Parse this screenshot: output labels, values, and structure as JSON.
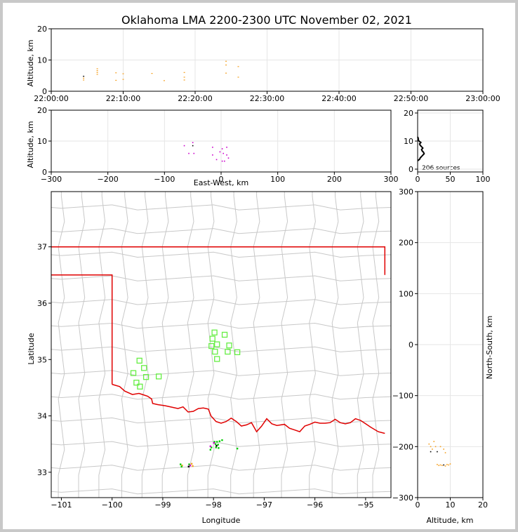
{
  "chart_data": [
    {
      "panel": "time-altitude",
      "type": "scatter",
      "title": "Oklahoma LMA 2200-2300 UTC November 02, 2021",
      "xlabel": "",
      "ylabel": "Altitude, km",
      "x_ticks": [
        "22:00:00",
        "22:10:00",
        "22:20:00",
        "22:30:00",
        "22:40:00",
        "22:50:00",
        "23:00:00"
      ],
      "y_ticks": [
        0,
        10,
        20
      ],
      "ylim": [
        0,
        20
      ],
      "grid": true,
      "points": [
        {
          "t": 4.5,
          "alt": 4.8,
          "color": "#000000"
        },
        {
          "t": 4.5,
          "alt": 4.2,
          "color": "#f5a020"
        },
        {
          "t": 4.5,
          "alt": 3.6,
          "color": "#f5a020"
        },
        {
          "t": 6.4,
          "alt": 7.2,
          "color": "#f5a020"
        },
        {
          "t": 6.4,
          "alt": 6.6,
          "color": "#f5a020"
        },
        {
          "t": 6.4,
          "alt": 6.0,
          "color": "#f5a020"
        },
        {
          "t": 6.4,
          "alt": 5.4,
          "color": "#f5a020"
        },
        {
          "t": 9.0,
          "alt": 5.9,
          "color": "#f5a020"
        },
        {
          "t": 9.0,
          "alt": 3.5,
          "color": "#f5a020"
        },
        {
          "t": 10.0,
          "alt": 5.6,
          "color": "#f5a020"
        },
        {
          "t": 10.0,
          "alt": 3.8,
          "color": "#f5a020"
        },
        {
          "t": 14.0,
          "alt": 5.7,
          "color": "#f5a020"
        },
        {
          "t": 15.7,
          "alt": 3.4,
          "color": "#f5a020"
        },
        {
          "t": 18.5,
          "alt": 6.0,
          "color": "#f5a020"
        },
        {
          "t": 18.5,
          "alt": 4.5,
          "color": "#f5a020"
        },
        {
          "t": 18.5,
          "alt": 3.6,
          "color": "#f5a020"
        },
        {
          "t": 24.3,
          "alt": 9.6,
          "color": "#f5a020"
        },
        {
          "t": 24.3,
          "alt": 8.4,
          "color": "#f5a020"
        },
        {
          "t": 24.3,
          "alt": 5.8,
          "color": "#f5a020"
        },
        {
          "t": 26.0,
          "alt": 7.9,
          "color": "#f5a020"
        },
        {
          "t": 26.0,
          "alt": 4.5,
          "color": "#f5a020"
        }
      ]
    },
    {
      "panel": "east-west-altitude",
      "type": "scatter",
      "xlabel": "East-West, km",
      "ylabel": "Altitude, km",
      "x_ticks": [
        -300,
        -200,
        -100,
        0,
        100,
        200,
        300
      ],
      "y_ticks": [
        0,
        10,
        20
      ],
      "xlim": [
        -300,
        300
      ],
      "ylim": [
        0,
        20
      ],
      "grid": true,
      "points": [
        {
          "x": -65,
          "alt": 8.5,
          "color": "#cc00cc"
        },
        {
          "x": -50,
          "alt": 9.5,
          "color": "#cc00cc"
        },
        {
          "x": -50,
          "alt": 8.5,
          "color": "#000000"
        },
        {
          "x": -57,
          "alt": 6.0,
          "color": "#cc00cc"
        },
        {
          "x": -48,
          "alt": 6.0,
          "color": "#cc00cc"
        },
        {
          "x": -15,
          "alt": 8.0,
          "color": "#cc00cc"
        },
        {
          "x": -15,
          "alt": 5.5,
          "color": "#cc00cc"
        },
        {
          "x": -8,
          "alt": 4.0,
          "color": "#cc00cc"
        },
        {
          "x": -2,
          "alt": 6.5,
          "color": "#cc00cc"
        },
        {
          "x": 2,
          "alt": 7.5,
          "color": "#cc00cc"
        },
        {
          "x": 4,
          "alt": 6.0,
          "color": "#cc00cc"
        },
        {
          "x": 10,
          "alt": 8.0,
          "color": "#cc00cc"
        },
        {
          "x": 10,
          "alt": 5.5,
          "color": "#cc00cc"
        },
        {
          "x": 13,
          "alt": 4.5,
          "color": "#cc00cc"
        },
        {
          "x": 2,
          "alt": 3.5,
          "color": "#cc00cc"
        },
        {
          "x": 6,
          "alt": 3.5,
          "color": "#cc00cc"
        }
      ]
    },
    {
      "panel": "altitude-histogram",
      "type": "line",
      "x_ticks": [
        0,
        50,
        100
      ],
      "y_ticks": [
        0,
        10,
        20
      ],
      "xlim": [
        0,
        100
      ],
      "ylim": [
        0,
        20
      ],
      "annotation": "206 sources",
      "grid": true,
      "profile": [
        {
          "alt": 3.0,
          "count": 0
        },
        {
          "alt": 3.5,
          "count": 3
        },
        {
          "alt": 4.0,
          "count": 4
        },
        {
          "alt": 4.5,
          "count": 6
        },
        {
          "alt": 5.0,
          "count": 8
        },
        {
          "alt": 5.5,
          "count": 10
        },
        {
          "alt": 6.0,
          "count": 9
        },
        {
          "alt": 6.5,
          "count": 7
        },
        {
          "alt": 7.0,
          "count": 6
        },
        {
          "alt": 7.5,
          "count": 8
        },
        {
          "alt": 8.0,
          "count": 6
        },
        {
          "alt": 8.5,
          "count": 4
        },
        {
          "alt": 9.0,
          "count": 3
        },
        {
          "alt": 9.5,
          "count": 5
        },
        {
          "alt": 10.0,
          "count": 2
        },
        {
          "alt": 10.5,
          "count": 1
        },
        {
          "alt": 11.0,
          "count": 1
        },
        {
          "alt": 11.5,
          "count": 0
        }
      ]
    },
    {
      "panel": "plan-view-map",
      "type": "scatter",
      "xlabel": "Longitude",
      "ylabel": "Latitude",
      "x_ticks": [
        -101,
        -100,
        -99,
        -98,
        -97,
        -96,
        -95
      ],
      "y_ticks": [
        33,
        34,
        35,
        36,
        37
      ],
      "xlim": [
        -101.2,
        -94.5
      ],
      "ylim": [
        32.55,
        37.98
      ],
      "stations": [
        [
          -97.98,
          35.48
        ],
        [
          -97.78,
          35.44
        ],
        [
          -98.02,
          35.37
        ],
        [
          -97.93,
          35.27
        ],
        [
          -98.04,
          35.24
        ],
        [
          -97.69,
          35.25
        ],
        [
          -97.97,
          35.14
        ],
        [
          -97.72,
          35.14
        ],
        [
          -97.53,
          35.13
        ],
        [
          -97.93,
          35.01
        ],
        [
          -99.46,
          34.98
        ],
        [
          -99.37,
          34.85
        ],
        [
          -99.58,
          34.76
        ],
        [
          -99.33,
          34.69
        ],
        [
          -99.08,
          34.7
        ],
        [
          -99.52,
          34.59
        ],
        [
          -99.45,
          34.52
        ]
      ],
      "sources": [
        [
          -97.98,
          33.54,
          "#00cc00"
        ],
        [
          -97.93,
          33.54,
          "#00cc00"
        ],
        [
          -97.88,
          33.55,
          "#00cc00"
        ],
        [
          -97.83,
          33.57,
          "#00cc00"
        ],
        [
          -97.96,
          33.5,
          "#00cc00"
        ],
        [
          -97.91,
          33.49,
          "#00cc00"
        ],
        [
          -98.04,
          33.44,
          "#00cc00"
        ],
        [
          -97.95,
          33.44,
          "#00cc00"
        ],
        [
          -97.9,
          33.43,
          "#00cc00"
        ],
        [
          -98.06,
          33.4,
          "#00cc00"
        ],
        [
          -97.53,
          33.42,
          "#00cc00"
        ],
        [
          -97.99,
          33.52,
          "#cc00cc"
        ],
        [
          -98.06,
          33.46,
          "#cc00cc"
        ],
        [
          -97.94,
          33.47,
          "#000000"
        ],
        [
          -98.65,
          33.14,
          "#00cc00"
        ],
        [
          -98.62,
          33.12,
          "#f5a020"
        ],
        [
          -98.48,
          33.14,
          "#00cc00"
        ],
        [
          -98.46,
          33.12,
          "#cc00cc"
        ],
        [
          -98.43,
          33.15,
          "#f5a020"
        ],
        [
          -98.49,
          33.1,
          "#000000"
        ],
        [
          -98.63,
          33.1,
          "#00cc00"
        ],
        [
          -98.41,
          33.11,
          "#f5a020"
        ]
      ],
      "state_border": [
        [
          -101.2,
          37.0
        ],
        [
          -94.62,
          37.0
        ],
        [
          -94.62,
          36.5
        ]
      ],
      "panhandle": [
        [
          -101.2,
          36.5
        ],
        [
          -100.0,
          36.5
        ],
        [
          -100.0,
          34.56
        ]
      ],
      "red_river": [
        [
          -100.0,
          34.56
        ],
        [
          -99.85,
          34.52
        ],
        [
          -99.75,
          34.44
        ],
        [
          -99.6,
          34.38
        ],
        [
          -99.47,
          34.4
        ],
        [
          -99.4,
          34.38
        ],
        [
          -99.3,
          34.35
        ],
        [
          -99.22,
          34.3
        ],
        [
          -99.2,
          34.22
        ],
        [
          -99.1,
          34.2
        ],
        [
          -98.95,
          34.18
        ],
        [
          -98.8,
          34.15
        ],
        [
          -98.7,
          34.13
        ],
        [
          -98.6,
          34.16
        ],
        [
          -98.5,
          34.07
        ],
        [
          -98.4,
          34.08
        ],
        [
          -98.3,
          34.13
        ],
        [
          -98.2,
          34.14
        ],
        [
          -98.1,
          34.12
        ],
        [
          -98.05,
          34.0
        ],
        [
          -97.95,
          33.9
        ],
        [
          -97.85,
          33.87
        ],
        [
          -97.75,
          33.9
        ],
        [
          -97.65,
          33.96
        ],
        [
          -97.55,
          33.9
        ],
        [
          -97.45,
          33.82
        ],
        [
          -97.35,
          33.84
        ],
        [
          -97.25,
          33.88
        ],
        [
          -97.15,
          33.72
        ],
        [
          -97.05,
          33.82
        ],
        [
          -96.95,
          33.95
        ],
        [
          -96.85,
          33.86
        ],
        [
          -96.75,
          33.83
        ],
        [
          -96.6,
          33.85
        ],
        [
          -96.5,
          33.78
        ],
        [
          -96.4,
          33.75
        ],
        [
          -96.3,
          33.72
        ],
        [
          -96.2,
          33.82
        ],
        [
          -96.1,
          33.85
        ],
        [
          -96.0,
          33.89
        ],
        [
          -95.9,
          33.87
        ],
        [
          -95.8,
          33.87
        ],
        [
          -95.7,
          33.88
        ],
        [
          -95.6,
          33.94
        ],
        [
          -95.5,
          33.88
        ],
        [
          -95.4,
          33.86
        ],
        [
          -95.3,
          33.88
        ],
        [
          -95.2,
          33.95
        ],
        [
          -95.1,
          33.92
        ],
        [
          -95.0,
          33.86
        ],
        [
          -94.9,
          33.8
        ],
        [
          -94.75,
          33.72
        ],
        [
          -94.62,
          33.69
        ]
      ]
    },
    {
      "panel": "altitude-north-south",
      "type": "scatter",
      "xlabel": "Altitude, km",
      "ylabel": "North-South, km",
      "x_ticks": [
        0,
        10,
        20
      ],
      "y_ticks": [
        300,
        200,
        100,
        0,
        -100,
        -200,
        -300
      ],
      "xlim": [
        0,
        20
      ],
      "ylim": [
        -300,
        300
      ],
      "grid": true,
      "points": [
        {
          "alt": 3.5,
          "y": -195,
          "color": "#f5a020"
        },
        {
          "alt": 4.0,
          "y": -200,
          "color": "#f5a020"
        },
        {
          "alt": 4.5,
          "y": -205,
          "color": "#f5a020"
        },
        {
          "alt": 4.0,
          "y": -210,
          "color": "#000000"
        },
        {
          "alt": 5.0,
          "y": -190,
          "color": "#f5a020"
        },
        {
          "alt": 5.5,
          "y": -200,
          "color": "#f5a020"
        },
        {
          "alt": 6.0,
          "y": -210,
          "color": "#000000"
        },
        {
          "alt": 7.0,
          "y": -200,
          "color": "#f5a020"
        },
        {
          "alt": 8.0,
          "y": -205,
          "color": "#f5a020"
        },
        {
          "alt": 8.5,
          "y": -212,
          "color": "#f5a020"
        },
        {
          "alt": 6.0,
          "y": -235,
          "color": "#f5a020"
        },
        {
          "alt": 6.5,
          "y": -237,
          "color": "#f5a020"
        },
        {
          "alt": 7.0,
          "y": -236,
          "color": "#f5a020"
        },
        {
          "alt": 7.5,
          "y": -237,
          "color": "#f5a020"
        },
        {
          "alt": 8.0,
          "y": -236,
          "color": "#000000"
        },
        {
          "alt": 8.5,
          "y": -238,
          "color": "#f5a020"
        },
        {
          "alt": 9.0,
          "y": -235,
          "color": "#f5a020"
        },
        {
          "alt": 9.5,
          "y": -236,
          "color": "#f5a020"
        },
        {
          "alt": 10.0,
          "y": -234,
          "color": "#f5a020"
        }
      ]
    }
  ]
}
